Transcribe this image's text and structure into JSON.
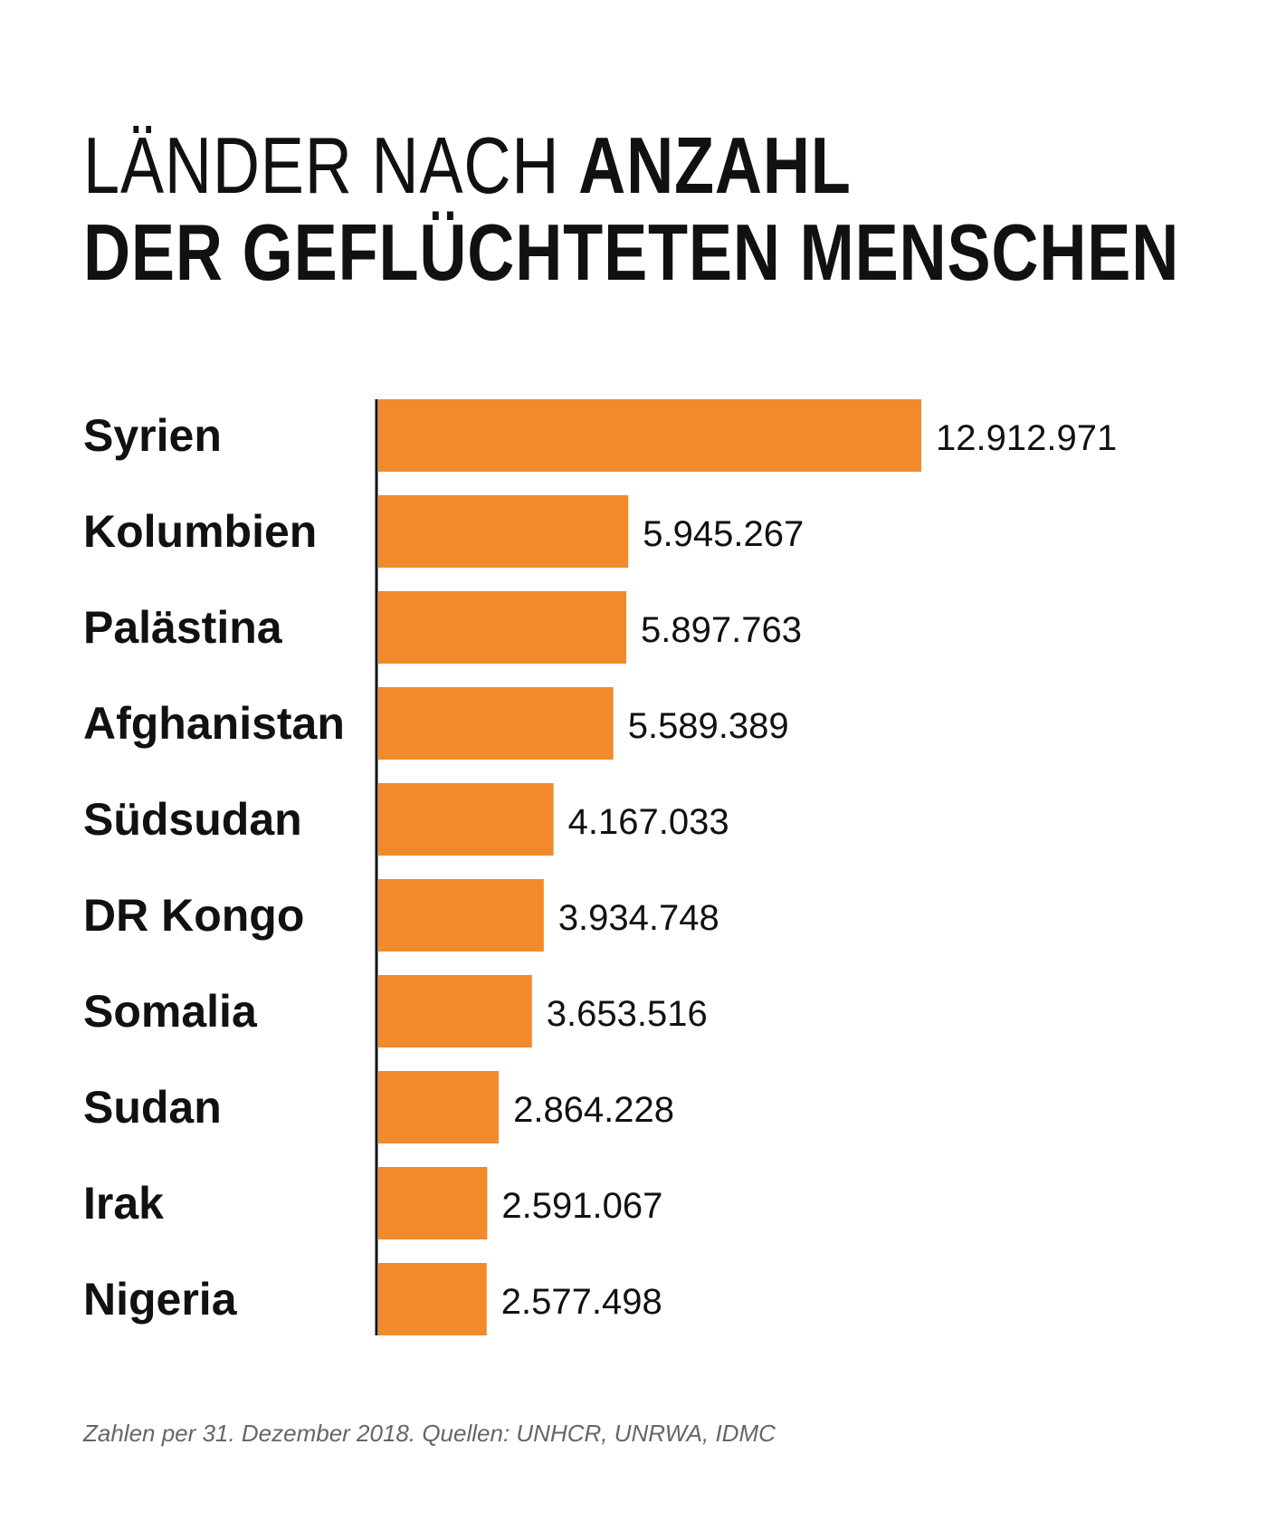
{
  "title": {
    "line1_light": "LÄNDER NACH ",
    "line1_bold": "ANZAHL",
    "line2_bold": "DER GEFLÜCHTETEN MENSCHEN"
  },
  "footnote": "Zahlen per 31. Dezember 2018. Quellen: UNHCR, UNRWA, IDMC",
  "colors": {
    "bar": "#F28A2B",
    "axis": "#111111",
    "text": "#111111",
    "footnote": "#666666"
  },
  "chart_data": {
    "type": "bar",
    "orientation": "horizontal",
    "categories": [
      "Syrien",
      "Kolumbien",
      "Palästina",
      "Afghanistan",
      "Südsudan",
      "DR Kongo",
      "Somalia",
      "Sudan",
      "Irak",
      "Nigeria"
    ],
    "values": [
      12912971,
      5945267,
      5897763,
      5589389,
      4167033,
      3934748,
      3653516,
      2864228,
      2591067,
      2577498
    ],
    "value_labels": [
      "12.912.971",
      "5.945.267",
      "5.897.763",
      "5.589.389",
      "4.167.033",
      "3.934.748",
      "3.653.516",
      "2.864.228",
      "2.591.067",
      "2.577.498"
    ],
    "grid": false,
    "legend": "none"
  }
}
